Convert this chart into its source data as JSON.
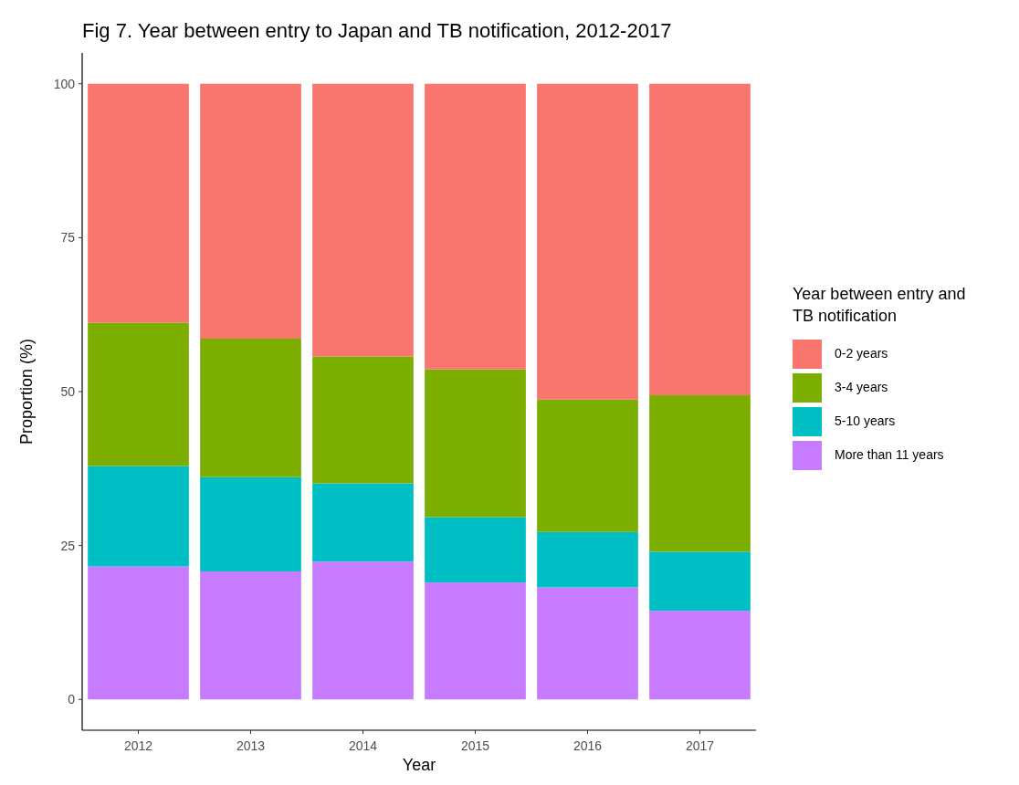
{
  "chart_data": {
    "type": "bar",
    "stacked": true,
    "title": "Fig 7. Year between entry to Japan and TB notification, 2012-2017",
    "xlabel": "Year",
    "ylabel": "Proportion (%)",
    "legend_title": "Year between entry and TB notification",
    "legend": "right",
    "grid": false,
    "categories": [
      "2012",
      "2013",
      "2014",
      "2015",
      "2016",
      "2017"
    ],
    "ylim": [
      -5,
      105
    ],
    "yticks": [
      0,
      25,
      50,
      75,
      100
    ],
    "series": [
      {
        "name": "More than 11 years",
        "color": "#c77cff",
        "values": [
          21.6,
          20.8,
          22.4,
          19.0,
          18.2,
          14.4
        ]
      },
      {
        "name": "5-10 years",
        "color": "#00bfc4",
        "values": [
          16.3,
          15.3,
          12.7,
          10.6,
          9.0,
          9.6
        ]
      },
      {
        "name": "3-4 years",
        "color": "#7cae00",
        "values": [
          23.3,
          22.5,
          20.6,
          24.0,
          21.5,
          25.4
        ]
      },
      {
        "name": "0-2 years",
        "color": "#f8766d",
        "values": [
          38.8,
          41.4,
          44.3,
          46.4,
          51.3,
          50.6
        ]
      }
    ]
  }
}
